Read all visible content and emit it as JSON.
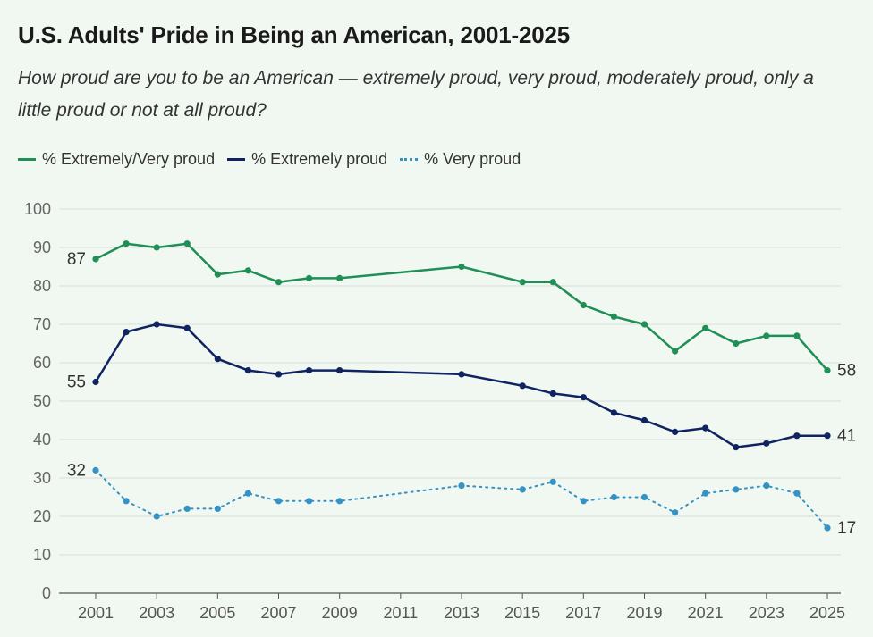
{
  "title": "U.S. Adults' Pride in Being an American, 2001-2025",
  "subtitle": "How proud are you to be an American — extremely proud, very proud, moderately proud, only a little proud or not at all proud?",
  "colors": {
    "background": "#f1f7f1",
    "grid": "#d7dcd7"
  },
  "chart_data": {
    "type": "line",
    "ylim": [
      0,
      100
    ],
    "yticks": [
      0,
      10,
      20,
      30,
      40,
      50,
      60,
      70,
      80,
      90,
      100
    ],
    "xlim": [
      2001,
      2025
    ],
    "xticks": [
      "2001",
      "2003",
      "2005",
      "2007",
      "2009",
      "2011",
      "2013",
      "2015",
      "2017",
      "2019",
      "2021",
      "2023",
      "2025"
    ],
    "grid": true,
    "legend_position": "top-left",
    "series": [
      {
        "name": "% Extremely/Very proud",
        "color": "#1f8f55",
        "style": "solid",
        "start_label": "87",
        "end_label": "58",
        "points": [
          [
            2001,
            87
          ],
          [
            2002,
            91
          ],
          [
            2003,
            90
          ],
          [
            2004,
            91
          ],
          [
            2005,
            83
          ],
          [
            2006,
            84
          ],
          [
            2007,
            81
          ],
          [
            2008,
            82
          ],
          [
            2009,
            82
          ],
          [
            2013,
            85
          ],
          [
            2015,
            81
          ],
          [
            2016,
            81
          ],
          [
            2017,
            75
          ],
          [
            2018,
            72
          ],
          [
            2019,
            70
          ],
          [
            2020,
            63
          ],
          [
            2021,
            69
          ],
          [
            2022,
            65
          ],
          [
            2023,
            67
          ],
          [
            2024,
            67
          ],
          [
            2025,
            58
          ]
        ]
      },
      {
        "name": "% Extremely proud",
        "color": "#0f2361",
        "style": "solid",
        "start_label": "55",
        "end_label": "41",
        "points": [
          [
            2001,
            55
          ],
          [
            2002,
            68
          ],
          [
            2003,
            70
          ],
          [
            2004,
            69
          ],
          [
            2005,
            61
          ],
          [
            2006,
            58
          ],
          [
            2007,
            57
          ],
          [
            2008,
            58
          ],
          [
            2009,
            58
          ],
          [
            2013,
            57
          ],
          [
            2015,
            54
          ],
          [
            2016,
            52
          ],
          [
            2017,
            51
          ],
          [
            2018,
            47
          ],
          [
            2019,
            45
          ],
          [
            2020,
            42
          ],
          [
            2021,
            43
          ],
          [
            2022,
            38
          ],
          [
            2023,
            39
          ],
          [
            2024,
            41
          ],
          [
            2025,
            41
          ]
        ]
      },
      {
        "name": "% Very proud",
        "color": "#3592c4",
        "style": "dotted",
        "start_label": "32",
        "end_label": "17",
        "points": [
          [
            2001,
            32
          ],
          [
            2002,
            24
          ],
          [
            2003,
            20
          ],
          [
            2004,
            22
          ],
          [
            2005,
            22
          ],
          [
            2006,
            26
          ],
          [
            2007,
            24
          ],
          [
            2008,
            24
          ],
          [
            2009,
            24
          ],
          [
            2013,
            28
          ],
          [
            2015,
            27
          ],
          [
            2016,
            29
          ],
          [
            2017,
            24
          ],
          [
            2018,
            25
          ],
          [
            2019,
            25
          ],
          [
            2020,
            21
          ],
          [
            2021,
            26
          ],
          [
            2022,
            27
          ],
          [
            2023,
            28
          ],
          [
            2024,
            26
          ],
          [
            2025,
            17
          ]
        ]
      }
    ]
  }
}
